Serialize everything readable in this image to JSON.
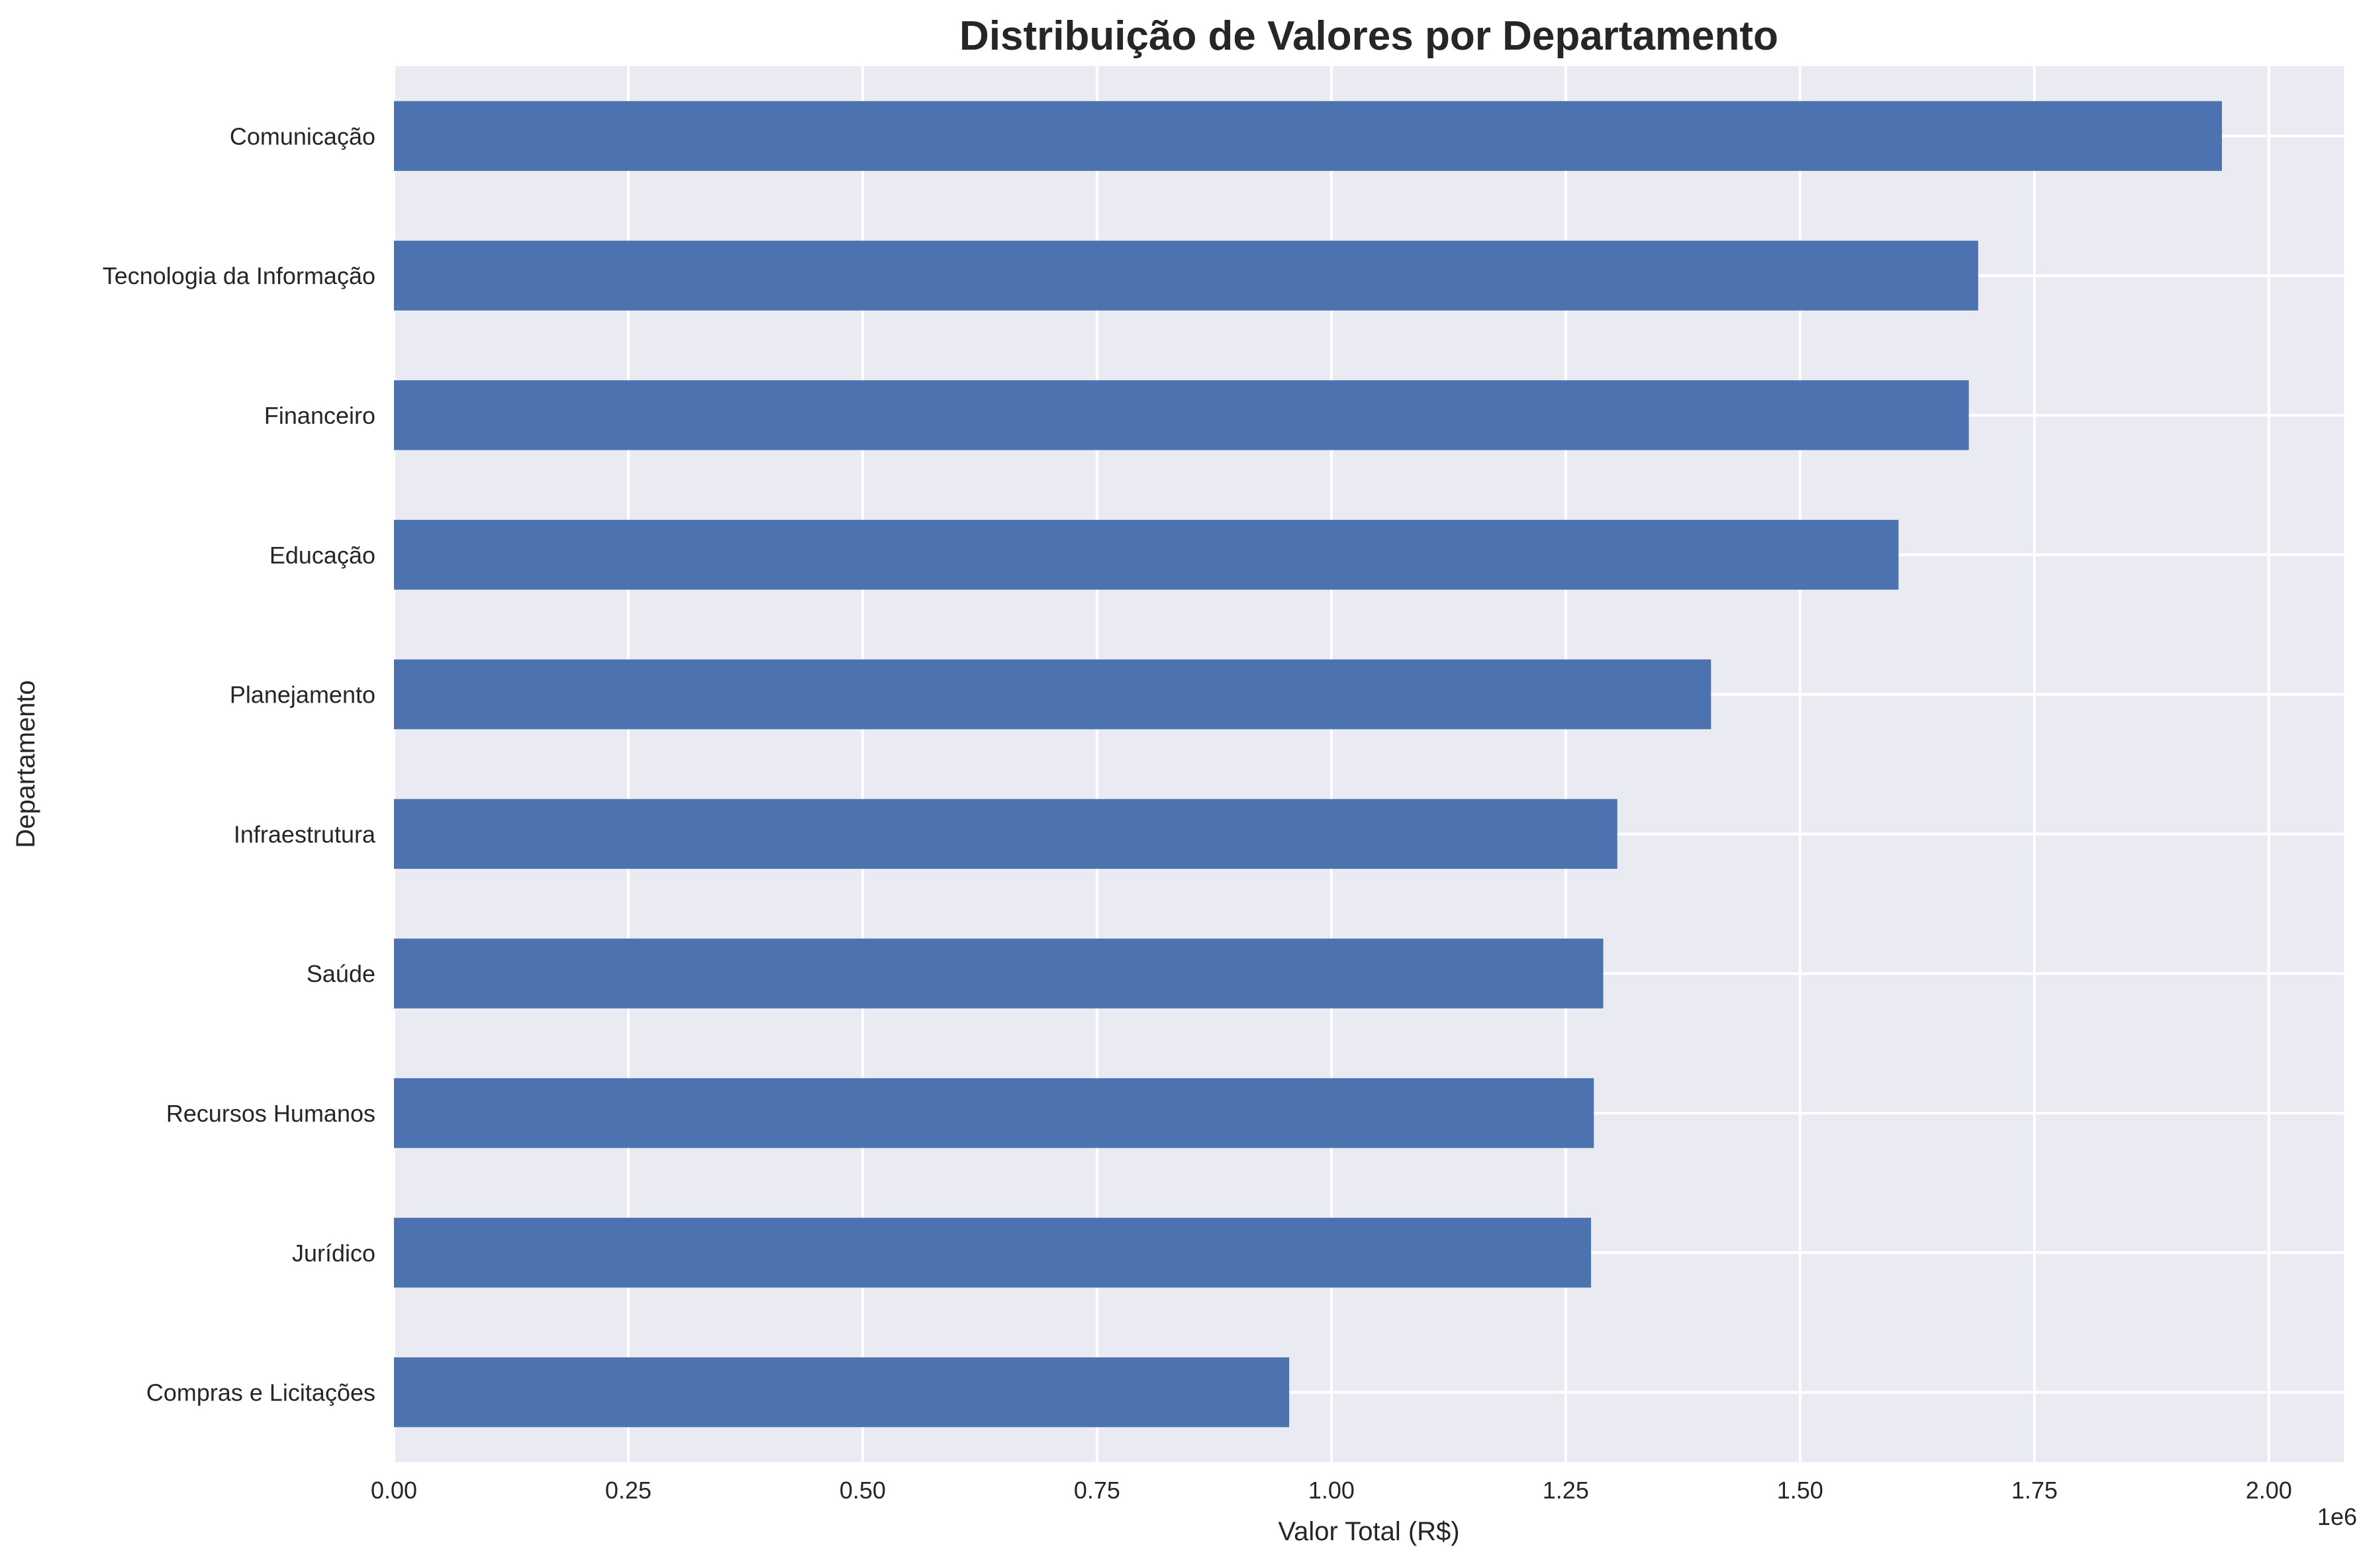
{
  "chart_data": {
    "type": "bar",
    "orientation": "horizontal",
    "title": "Distribuição de Valores por Departamento",
    "xlabel": "Valor Total (R$)",
    "ylabel": "Departamento",
    "x_scale_label": "1e6",
    "xlim": [
      0,
      2080000
    ],
    "xticks": [
      0,
      250000,
      500000,
      750000,
      1000000,
      1250000,
      1500000,
      1750000,
      2000000
    ],
    "xtick_labels": [
      "0.00",
      "0.25",
      "0.50",
      "0.75",
      "1.00",
      "1.25",
      "1.50",
      "1.75",
      "2.00"
    ],
    "grid": true,
    "bar_color": "#4c72b0",
    "background_color": "#eaeaf2",
    "categories": [
      "Comunicação",
      "Tecnologia da Informação",
      "Financeiro",
      "Educação",
      "Planejamento",
      "Infraestrutura",
      "Saúde",
      "Recursos Humanos",
      "Jurídico",
      "Compras e Licitações"
    ],
    "values": [
      1950000,
      1690000,
      1680000,
      1605000,
      1405000,
      1305000,
      1290000,
      1280000,
      1277000,
      955000
    ]
  }
}
